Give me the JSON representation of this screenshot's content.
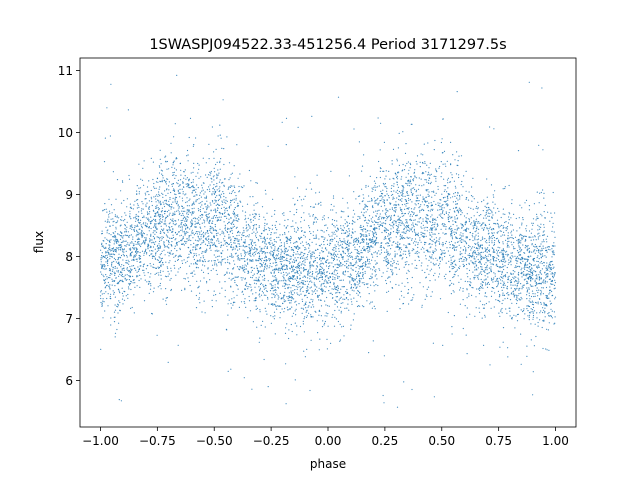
{
  "chart_data": {
    "type": "scatter",
    "title": "1SWASPJ094522.33-451256.4 Period 3171297.5s",
    "xlabel": "phase",
    "ylabel": "flux",
    "xlim": [
      -1.09,
      1.09
    ],
    "ylim": [
      5.25,
      11.2
    ],
    "xticks": [
      -1.0,
      -0.75,
      -0.5,
      -0.25,
      0.0,
      0.25,
      0.5,
      0.75,
      1.0
    ],
    "xtick_labels": [
      "−1.00",
      "−0.75",
      "−0.50",
      "−0.25",
      "0.00",
      "0.25",
      "0.50",
      "0.75",
      "1.00"
    ],
    "yticks": [
      6,
      7,
      8,
      9,
      10,
      11
    ],
    "ytick_labels": [
      "6",
      "7",
      "8",
      "9",
      "10",
      "11"
    ],
    "grid": false,
    "legend": "none",
    "marker_color": "#1f77b4",
    "series": [
      {
        "x": [
          -1.0,
          -0.95,
          -0.9,
          -0.85,
          -0.8,
          -0.75,
          -0.7,
          -0.65,
          -0.6,
          -0.55,
          -0.5,
          -0.45,
          -0.4,
          -0.35,
          -0.3,
          -0.25,
          -0.2,
          -0.15,
          -0.1,
          -0.05,
          0.0,
          0.05,
          0.1,
          0.15,
          0.2,
          0.25,
          0.3,
          0.35,
          0.4,
          0.45,
          0.5,
          0.55,
          0.6,
          0.65,
          0.7,
          0.75,
          0.8,
          0.85,
          0.9,
          0.95,
          1.0
        ],
        "y_center": [
          7.8,
          7.9,
          8.0,
          8.2,
          8.3,
          8.4,
          8.6,
          8.6,
          8.5,
          8.5,
          8.6,
          8.4,
          8.3,
          8.1,
          7.9,
          7.9,
          7.8,
          7.8,
          7.7,
          7.9,
          7.8,
          7.9,
          8.0,
          8.1,
          8.3,
          8.5,
          8.6,
          8.6,
          8.5,
          8.6,
          8.6,
          8.4,
          8.2,
          8.1,
          8.0,
          7.9,
          7.9,
          7.8,
          7.7,
          7.8,
          7.8
        ],
        "y_spread": [
          0.45,
          0.45,
          0.45,
          0.45,
          0.45,
          0.5,
          0.55,
          0.55,
          0.5,
          0.55,
          0.55,
          0.55,
          0.5,
          0.45,
          0.45,
          0.45,
          0.45,
          0.45,
          0.5,
          0.5,
          0.5,
          0.45,
          0.45,
          0.45,
          0.45,
          0.5,
          0.55,
          0.55,
          0.5,
          0.55,
          0.55,
          0.55,
          0.5,
          0.45,
          0.45,
          0.45,
          0.45,
          0.45,
          0.5,
          0.5,
          0.45
        ]
      }
    ]
  }
}
